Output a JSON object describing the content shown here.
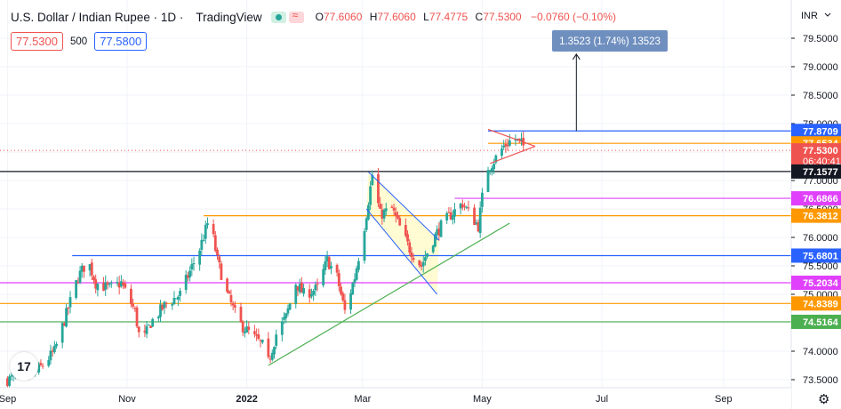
{
  "header": {
    "symbol": "U.S. Dollar / Indian Rupee · 1D ·",
    "brand": "TradingView",
    "open_label": "O",
    "open": "77.6060",
    "high_label": "H",
    "high": "77.6060",
    "low_label": "L",
    "low": "77.4775",
    "close_label": "C",
    "close": "77.5300",
    "change": "−0.0760 (−0.10%)"
  },
  "bidask": {
    "bid": "77.5300",
    "size": "500",
    "ask": "77.5800"
  },
  "logo": "17",
  "settings_icon": "gear-icon",
  "colors": {
    "up": "#26a69a",
    "down": "#ef5350",
    "blue": "#2962ff",
    "orange": "#ff9800",
    "magenta": "#e040fb",
    "green": "#4caf50",
    "black": "#131722"
  },
  "chart_data": {
    "type": "candlestick",
    "currency": "INR",
    "ylim": [
      73.5,
      79.85
    ],
    "y_ticks": [
      73.5,
      74.0,
      74.5,
      75.0,
      75.5,
      76.0,
      76.5,
      77.0,
      77.5,
      78.0,
      78.5,
      79.0,
      79.5
    ],
    "y_tick_labels": [
      "73.5000",
      "74.0000",
      "74.5000",
      "75.0000",
      "75.5000",
      "76.0000",
      "76.5000",
      "77.0000",
      "77.5000",
      "78.0000",
      "78.5000",
      "79.0000",
      "79.5000"
    ],
    "x_labels": [
      "Sep",
      "Nov",
      "2022",
      "Mar",
      "May",
      "Jul",
      "Sep"
    ],
    "x_label_days": [
      0,
      61,
      122,
      181,
      242,
      303,
      365
    ],
    "anchor_points": [
      {
        "d": 0,
        "v": 73.5
      },
      {
        "d": 14,
        "v": 73.6
      },
      {
        "d": 24,
        "v": 74.0
      },
      {
        "d": 36,
        "v": 75.3
      },
      {
        "d": 41,
        "v": 75.6
      },
      {
        "d": 45,
        "v": 75.2
      },
      {
        "d": 52,
        "v": 75.1
      },
      {
        "d": 58,
        "v": 75.2
      },
      {
        "d": 65,
        "v": 74.7
      },
      {
        "d": 68,
        "v": 74.1
      },
      {
        "d": 73,
        "v": 74.5
      },
      {
        "d": 80,
        "v": 74.8
      },
      {
        "d": 88,
        "v": 75.0
      },
      {
        "d": 93,
        "v": 75.4
      },
      {
        "d": 98,
        "v": 75.8
      },
      {
        "d": 103,
        "v": 76.35
      },
      {
        "d": 107,
        "v": 75.6
      },
      {
        "d": 112,
        "v": 75.0
      },
      {
        "d": 118,
        "v": 74.5
      },
      {
        "d": 124,
        "v": 74.3
      },
      {
        "d": 130,
        "v": 74.1
      },
      {
        "d": 133,
        "v": 73.8
      },
      {
        "d": 137,
        "v": 74.3
      },
      {
        "d": 142,
        "v": 74.6
      },
      {
        "d": 147,
        "v": 75.2
      },
      {
        "d": 151,
        "v": 75.0
      },
      {
        "d": 158,
        "v": 75.1
      },
      {
        "d": 163,
        "v": 75.6
      },
      {
        "d": 168,
        "v": 75.3
      },
      {
        "d": 172,
        "v": 74.7
      },
      {
        "d": 177,
        "v": 75.3
      },
      {
        "d": 182,
        "v": 76.2
      },
      {
        "d": 186,
        "v": 77.1
      },
      {
        "d": 190,
        "v": 76.4
      },
      {
        "d": 196,
        "v": 76.5
      },
      {
        "d": 201,
        "v": 76.1
      },
      {
        "d": 205,
        "v": 75.8
      },
      {
        "d": 211,
        "v": 75.5
      },
      {
        "d": 216,
        "v": 75.9
      },
      {
        "d": 221,
        "v": 76.2
      },
      {
        "d": 226,
        "v": 76.4
      },
      {
        "d": 232,
        "v": 76.6
      },
      {
        "d": 236,
        "v": 76.4
      },
      {
        "d": 240,
        "v": 76.2
      },
      {
        "d": 244,
        "v": 77.2
      },
      {
        "d": 247,
        "v": 77.3
      },
      {
        "d": 253,
        "v": 77.6
      },
      {
        "d": 258,
        "v": 77.75
      },
      {
        "d": 265,
        "v": 77.55
      }
    ],
    "horizontal_levels": [
      {
        "value": 77.8709,
        "label": "77.8709",
        "color": "#2962ff"
      },
      {
        "value": 77.6534,
        "label": "77.6534",
        "color": "#ff9800"
      },
      {
        "value": 77.53,
        "label": "77.5300",
        "color": "#ef5350",
        "sub_label": "06:40:41"
      },
      {
        "value": 77.1577,
        "label": "77.1577",
        "color": "#131722"
      },
      {
        "value": 76.6866,
        "label": "76.6866",
        "color": "#e040fb"
      },
      {
        "value": 76.3812,
        "label": "76.3812",
        "color": "#ff9800"
      },
      {
        "value": 75.6801,
        "label": "75.6801",
        "color": "#2962ff"
      },
      {
        "value": 75.2034,
        "label": "75.2034",
        "color": "#e040fb"
      },
      {
        "value": 74.8389,
        "label": "74.8389",
        "color": "#ff9800"
      },
      {
        "value": 74.5164,
        "label": "74.5164",
        "color": "#4caf50"
      }
    ],
    "trendline": {
      "from": {
        "d": 133,
        "v": 73.75
      },
      "to": {
        "d": 256,
        "v": 76.25
      },
      "color": "#4caf50"
    },
    "channel": {
      "upper": {
        "from": {
          "d": 184,
          "v": 77.15
        },
        "to": {
          "d": 220,
          "v": 75.95
        }
      },
      "lower": {
        "from": {
          "d": 183,
          "v": 76.5
        },
        "to": {
          "d": 219,
          "v": 75.0
        }
      },
      "color": "#2962ff"
    },
    "triangle": {
      "upper": {
        "from": {
          "d": 245,
          "v": 77.9
        },
        "to": {
          "d": 269,
          "v": 77.6
        }
      },
      "lower": {
        "from": {
          "d": 246,
          "v": 77.3
        },
        "to": {
          "d": 269,
          "v": 77.6
        }
      },
      "color": "#ef5350"
    },
    "projection": {
      "label": "1.3523 (1.74%) 13523",
      "from": {
        "d": 290,
        "v": 77.87
      },
      "to": {
        "d": 290,
        "v": 79.22
      }
    }
  }
}
